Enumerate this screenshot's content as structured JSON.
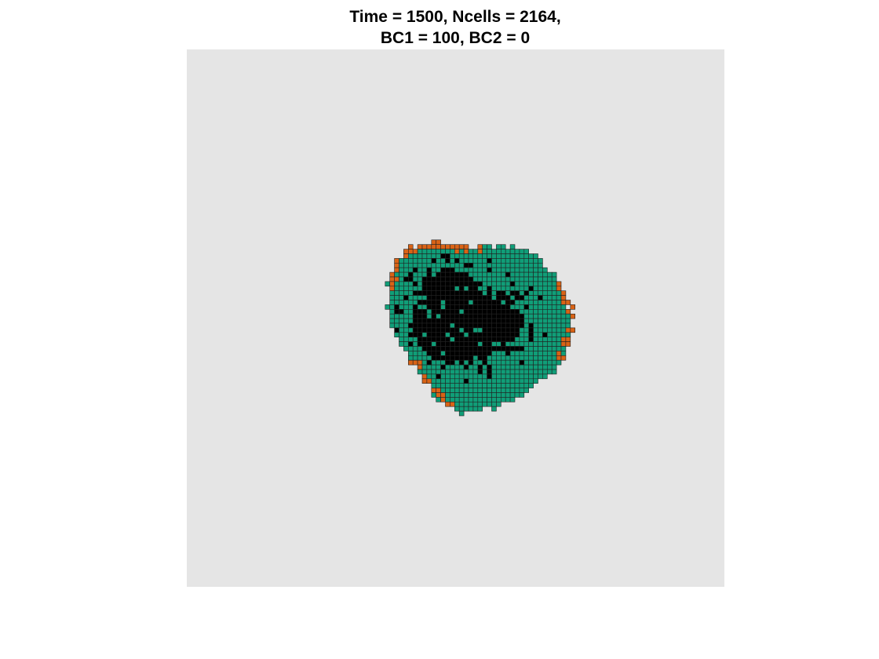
{
  "title": {
    "line1": "Time = 1500, Ncells = 2164,",
    "line2": "BC1 = 100, BC2 = 0"
  },
  "plot": {
    "background_color": "#e5e5e5"
  },
  "cell_colors": {
    "main_cell": "#109e78",
    "boundary_cell": "#d96316",
    "dead_cell": "#000000",
    "cell_edge": "#222222"
  },
  "chart_data": {
    "type": "heatmap",
    "title": "Time = 1500, Ncells = 2164, BC1 = 100, BC2 = 0",
    "time": 1500,
    "ncells": 2164,
    "bc1": 100,
    "bc2": 0,
    "categories": [
      "main cells (green)",
      "boundary cells (orange)",
      "necrotic core (black)"
    ],
    "grid": false,
    "axes_visible": false
  }
}
